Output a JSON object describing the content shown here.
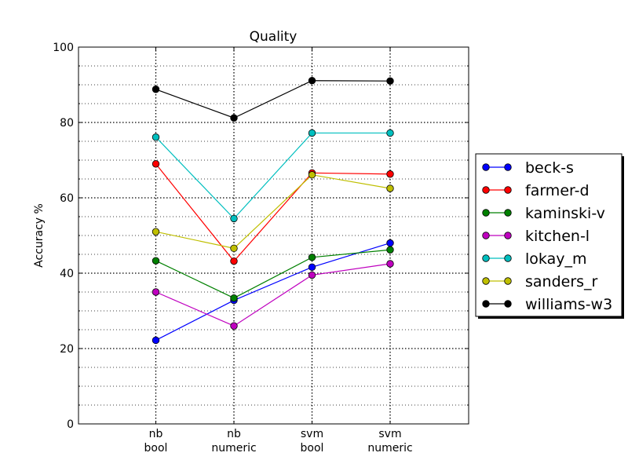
{
  "chart_data": {
    "type": "line",
    "title": "Quality",
    "ylabel": "Accuracy %",
    "xlabel": "",
    "ylim": [
      0,
      100
    ],
    "yticks": [
      "0",
      "20",
      "40",
      "60",
      "80",
      "100"
    ],
    "categories": [
      [
        "nb",
        "bool"
      ],
      [
        "nb",
        "numeric"
      ],
      [
        "svm",
        "bool"
      ],
      [
        "svm",
        "numeric"
      ]
    ],
    "grid": true,
    "legend_position": "right",
    "series": [
      {
        "name": "beck-s",
        "color": "#0000ff",
        "values": [
          22.2,
          32.8,
          41.6,
          48.0
        ]
      },
      {
        "name": "farmer-d",
        "color": "#ff0000",
        "values": [
          69.0,
          43.2,
          66.6,
          66.3
        ]
      },
      {
        "name": "kaminski-v",
        "color": "#008000",
        "values": [
          43.3,
          33.4,
          44.2,
          46.2
        ]
      },
      {
        "name": "kitchen-l",
        "color": "#bf00bf",
        "values": [
          35.0,
          26.0,
          39.5,
          42.5
        ]
      },
      {
        "name": "lokay_m",
        "color": "#00bfbf",
        "values": [
          76.1,
          54.5,
          77.2,
          77.2
        ]
      },
      {
        "name": "sanders_r",
        "color": "#bfbf00",
        "values": [
          51.0,
          46.6,
          66.1,
          62.5
        ]
      },
      {
        "name": "williams-w3",
        "color": "#000000",
        "values": [
          88.8,
          81.2,
          91.1,
          91.0
        ]
      }
    ]
  }
}
